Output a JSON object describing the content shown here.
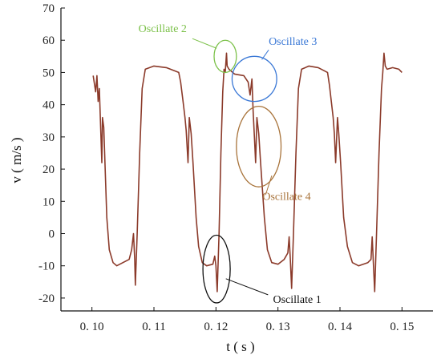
{
  "chart_data": {
    "type": "line",
    "title": "",
    "xlabel": "t ( s )",
    "ylabel": "v ( m/s )",
    "xlim": [
      0.095,
      0.155
    ],
    "ylim": [
      -24,
      70
    ],
    "xticks": [
      0.1,
      0.11,
      0.12,
      0.13,
      0.14,
      0.15
    ],
    "xtick_labels": [
      "0. 10",
      "0. 11",
      "0. 12",
      "0. 13",
      "0. 14",
      "0. 15"
    ],
    "yticks": [
      -20,
      -10,
      0,
      10,
      20,
      30,
      40,
      50,
      60,
      70
    ],
    "ytick_labels": [
      "-20",
      "-10",
      "0",
      "10",
      "20",
      "30",
      "40",
      "50",
      "60",
      "70"
    ],
    "grid": false,
    "line_color": "#8b3a2a",
    "series": [
      {
        "values": [
          [
            0.1002,
            49
          ],
          [
            0.1006,
            44
          ],
          [
            0.1008,
            49
          ],
          [
            0.101,
            41
          ],
          [
            0.1012,
            45
          ],
          [
            0.1016,
            22
          ],
          [
            0.1017,
            36
          ],
          [
            0.1019,
            33
          ],
          [
            0.1021,
            22
          ],
          [
            0.1024,
            5
          ],
          [
            0.1028,
            -5
          ],
          [
            0.1034,
            -9
          ],
          [
            0.104,
            -10
          ],
          [
            0.105,
            -9
          ],
          [
            0.106,
            -8
          ],
          [
            0.1064,
            -5
          ],
          [
            0.1067,
            0
          ],
          [
            0.1069,
            -8
          ],
          [
            0.107,
            -16
          ],
          [
            0.1073,
            0
          ],
          [
            0.1077,
            25
          ],
          [
            0.1081,
            45
          ],
          [
            0.1086,
            51
          ],
          [
            0.11,
            52
          ],
          [
            0.112,
            51.5
          ],
          [
            0.114,
            50
          ],
          [
            0.1143,
            47
          ],
          [
            0.1147,
            41
          ],
          [
            0.115,
            36
          ],
          [
            0.1152,
            32
          ],
          [
            0.1155,
            22
          ],
          [
            0.1157,
            36
          ],
          [
            0.116,
            31
          ],
          [
            0.1163,
            22
          ],
          [
            0.1168,
            5
          ],
          [
            0.1172,
            -4
          ],
          [
            0.1178,
            -9
          ],
          [
            0.1185,
            -10
          ],
          [
            0.1195,
            -9.5
          ],
          [
            0.1198,
            -7
          ],
          [
            0.12,
            -10
          ],
          [
            0.1202,
            -18
          ],
          [
            0.1205,
            0
          ],
          [
            0.1208,
            25
          ],
          [
            0.1211,
            44
          ],
          [
            0.1213,
            51
          ],
          [
            0.1215,
            50
          ],
          [
            0.1217,
            56
          ],
          [
            0.1218,
            52
          ],
          [
            0.1221,
            51
          ],
          [
            0.123,
            49.5
          ],
          [
            0.1245,
            49
          ],
          [
            0.1252,
            47
          ],
          [
            0.1255,
            43
          ],
          [
            0.1258,
            48
          ],
          [
            0.126,
            38
          ],
          [
            0.1262,
            30
          ],
          [
            0.1264,
            22
          ],
          [
            0.1266,
            36
          ],
          [
            0.1269,
            31
          ],
          [
            0.1272,
            22
          ],
          [
            0.1278,
            5
          ],
          [
            0.1283,
            -5
          ],
          [
            0.129,
            -9
          ],
          [
            0.13,
            -9.5
          ],
          [
            0.131,
            -8
          ],
          [
            0.1316,
            -6
          ],
          [
            0.1318,
            -1
          ],
          [
            0.132,
            -8
          ],
          [
            0.1322,
            -17
          ],
          [
            0.1325,
            0
          ],
          [
            0.1329,
            25
          ],
          [
            0.1333,
            45
          ],
          [
            0.1338,
            51
          ],
          [
            0.135,
            52
          ],
          [
            0.1365,
            51.5
          ],
          [
            0.138,
            50
          ],
          [
            0.1383,
            46
          ],
          [
            0.1386,
            41
          ],
          [
            0.1389,
            36
          ],
          [
            0.1391,
            31
          ],
          [
            0.1393,
            22
          ],
          [
            0.1396,
            36
          ],
          [
            0.1398,
            31
          ],
          [
            0.1401,
            22
          ],
          [
            0.1406,
            5
          ],
          [
            0.1412,
            -4
          ],
          [
            0.142,
            -9
          ],
          [
            0.143,
            -10
          ],
          [
            0.1445,
            -9
          ],
          [
            0.145,
            -8
          ],
          [
            0.1452,
            -1
          ],
          [
            0.1454,
            -10
          ],
          [
            0.1456,
            -18
          ],
          [
            0.1459,
            0
          ],
          [
            0.1463,
            25
          ],
          [
            0.1467,
            45
          ],
          [
            0.1469,
            50
          ],
          [
            0.1471,
            56
          ],
          [
            0.1473,
            52
          ],
          [
            0.1476,
            51
          ],
          [
            0.1485,
            51.5
          ],
          [
            0.1495,
            51
          ],
          [
            0.15,
            50
          ]
        ]
      }
    ],
    "annotations": [
      {
        "label": "Oscillate 1",
        "color": "#111111",
        "circle": {
          "cx": 0.1201,
          "cy": -11,
          "rx": 0.0022,
          "ry": 10.5
        },
        "label_pos": [
          0.1292,
          -21.5
        ],
        "leader_from": [
          0.1216,
          -14
        ],
        "leader_to": [
          0.1284,
          -19
        ]
      },
      {
        "label": "Oscillate 2",
        "color": "#7cc14a",
        "circle": {
          "cx": 0.1215,
          "cy": 55,
          "rx": 0.0018,
          "ry": 5
        },
        "label_pos": [
          0.1075,
          62.5
        ],
        "leader_from": [
          0.1162,
          60.5
        ],
        "leader_to": [
          0.1201,
          57.5
        ]
      },
      {
        "label": "Oscillate 3",
        "color": "#3a78d6",
        "circle": {
          "cx": 0.1262,
          "cy": 48,
          "rx": 0.0036,
          "ry": 7
        },
        "label_pos": [
          0.1285,
          58.5
        ],
        "leader_from": [
          0.1285,
          57
        ],
        "leader_to": [
          0.1274,
          54
        ]
      },
      {
        "label": "Oscillate 4",
        "color": "#a8733a",
        "circle": {
          "cx": 0.1269,
          "cy": 27,
          "rx": 0.0036,
          "ry": 12.5
        },
        "label_pos": [
          0.1275,
          10.5
        ],
        "leader_from": [
          0.129,
          18
        ],
        "leader_to": [
          0.128,
          12
        ]
      }
    ]
  }
}
